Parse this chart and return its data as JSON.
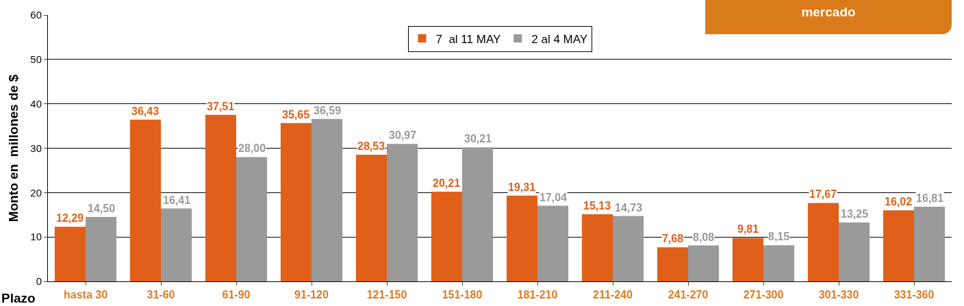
{
  "chart_data": {
    "type": "bar",
    "title": "mercado",
    "xlabel": "Plazo",
    "ylabel": "Monto en  millones de $",
    "categories": [
      "hasta 30",
      "31-60",
      "61-90",
      "91-120",
      "121-150",
      "151-180",
      "181-210",
      "211-240",
      "241-270",
      "271-300",
      "301-330",
      "331-360"
    ],
    "series": [
      {
        "name": "7  al 11 MAY",
        "color": "#e0601a",
        "values": [
          12.29,
          36.43,
          37.51,
          35.65,
          28.53,
          20.21,
          19.31,
          15.13,
          7.68,
          9.81,
          17.67,
          16.02
        ],
        "value_labels": [
          "12,29",
          "36,43",
          "37,51",
          "35,65",
          "28,53",
          "20,21",
          "19,31",
          "15,13",
          "7,68",
          "9,81",
          "17,67",
          "16,02"
        ]
      },
      {
        "name": "2 al 4 MAY",
        "color": "#9a9a9a",
        "values": [
          14.5,
          16.41,
          28.0,
          36.59,
          30.97,
          30.21,
          17.04,
          14.73,
          8.08,
          8.15,
          13.25,
          16.81
        ],
        "value_labels": [
          "14,50",
          "16,41",
          "28,00",
          "36,59",
          "30,97",
          "30,21",
          "17,04",
          "14,73",
          "8,08",
          "8,15",
          "13,25",
          "16,81"
        ]
      }
    ],
    "ylim": [
      0,
      60
    ],
    "yticks": [
      0,
      10,
      20,
      30,
      40,
      50,
      60
    ],
    "grid": "y",
    "legend": "top"
  }
}
